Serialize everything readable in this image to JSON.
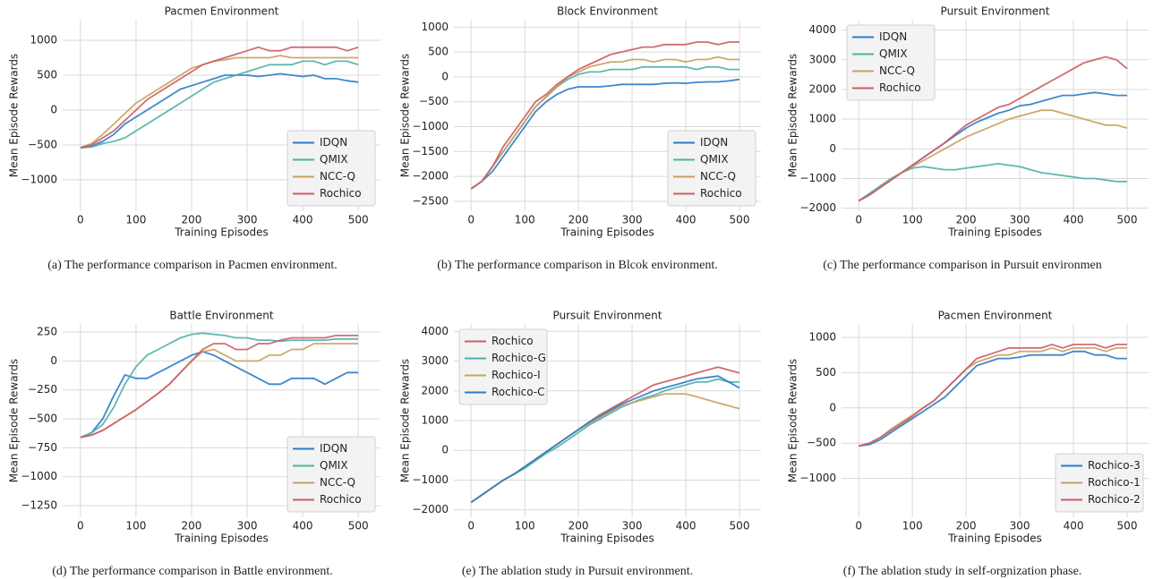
{
  "chart_data": [
    {
      "type": "line",
      "title": "Pacmen Environment",
      "xlabel": "Training Episodes",
      "ylabel": "Mean Episode Rewards",
      "caption": "(a)  The performance comparison in Pacmen environment.",
      "legend": "lower right",
      "grid": true,
      "x": [
        0,
        20,
        40,
        60,
        80,
        100,
        120,
        140,
        160,
        180,
        200,
        220,
        240,
        260,
        280,
        300,
        320,
        340,
        360,
        380,
        400,
        420,
        440,
        460,
        480,
        500
      ],
      "xlim": [
        -32,
        540
      ],
      "ylim": [
        -1450,
        1295
      ],
      "xticks": [
        0,
        100,
        200,
        300,
        400,
        500
      ],
      "yticks": [
        {
          "value": -1000,
          "label": "−1000"
        },
        {
          "value": -500,
          "label": "−500"
        },
        0,
        500,
        1000
      ],
      "series": [
        {
          "name": "IDQN",
          "color": "#2a7bc8",
          "values": [
            -540,
            -520,
            -450,
            -350,
            -200,
            -100,
            0,
            100,
            200,
            300,
            350,
            400,
            450,
            500,
            500,
            500,
            480,
            500,
            520,
            500,
            480,
            500,
            450,
            450,
            420,
            400
          ]
        },
        {
          "name": "QMIX",
          "color": "#4cb1a9",
          "values": [
            -540,
            -530,
            -480,
            -450,
            -400,
            -300,
            -200,
            -100,
            0,
            100,
            200,
            300,
            400,
            450,
            500,
            550,
            600,
            650,
            650,
            650,
            700,
            700,
            650,
            700,
            700,
            650
          ]
        },
        {
          "name": "NCC-Q",
          "color": "#c9a060",
          "values": [
            -540,
            -480,
            -350,
            -200,
            -50,
            100,
            200,
            300,
            400,
            500,
            600,
            650,
            700,
            720,
            750,
            750,
            750,
            750,
            780,
            750,
            750,
            750,
            750,
            750,
            750,
            750
          ]
        },
        {
          "name": "Rochico",
          "color": "#cd5c64",
          "values": [
            -540,
            -500,
            -400,
            -300,
            -150,
            0,
            150,
            250,
            350,
            450,
            550,
            650,
            700,
            750,
            800,
            850,
            900,
            850,
            850,
            900,
            900,
            900,
            900,
            900,
            850,
            900
          ]
        }
      ]
    },
    {
      "type": "line",
      "title": "Block Environment",
      "xlabel": "Training Episodes",
      "ylabel": "Mean Episode Rewards",
      "caption": "(b)  The performance comparison in Blcok environment.",
      "legend": "lower right",
      "grid": true,
      "x": [
        0,
        20,
        40,
        60,
        80,
        100,
        120,
        140,
        160,
        180,
        200,
        220,
        240,
        260,
        280,
        300,
        320,
        340,
        360,
        380,
        400,
        420,
        440,
        460,
        480,
        500
      ],
      "xlim": [
        -32,
        540
      ],
      "ylim": [
        -2700,
        1150
      ],
      "xticks": [
        0,
        100,
        200,
        300,
        400,
        500
      ],
      "yticks": [
        {
          "value": -2500,
          "label": "−2500"
        },
        {
          "value": -2000,
          "label": "−2000"
        },
        {
          "value": -1500,
          "label": "−1500"
        },
        {
          "value": -1000,
          "label": "−1000"
        },
        {
          "value": -500,
          "label": "−500"
        },
        0,
        500,
        1000
      ],
      "series": [
        {
          "name": "IDQN",
          "color": "#2a7bc8",
          "values": [
            -2250,
            -2100,
            -1900,
            -1600,
            -1300,
            -1000,
            -700,
            -500,
            -350,
            -250,
            -200,
            -200,
            -200,
            -180,
            -150,
            -150,
            -150,
            -150,
            -130,
            -120,
            -130,
            -110,
            -100,
            -100,
            -80,
            -50
          ]
        },
        {
          "name": "QMIX",
          "color": "#4cb1a9",
          "values": [
            -2250,
            -2100,
            -1800,
            -1500,
            -1200,
            -900,
            -600,
            -400,
            -200,
            -50,
            50,
            100,
            100,
            150,
            150,
            150,
            200,
            200,
            200,
            200,
            200,
            150,
            200,
            200,
            150,
            150
          ]
        },
        {
          "name": "NCC-Q",
          "color": "#c9a060",
          "values": [
            -2250,
            -2100,
            -1800,
            -1500,
            -1200,
            -900,
            -600,
            -400,
            -200,
            0,
            100,
            200,
            250,
            300,
            300,
            350,
            350,
            300,
            350,
            350,
            300,
            350,
            350,
            400,
            350,
            350
          ]
        },
        {
          "name": "Rochico",
          "color": "#cd5c64",
          "values": [
            -2250,
            -2100,
            -1800,
            -1400,
            -1100,
            -800,
            -500,
            -350,
            -150,
            0,
            150,
            250,
            350,
            450,
            500,
            550,
            600,
            600,
            650,
            650,
            650,
            700,
            700,
            650,
            700,
            700
          ]
        }
      ]
    },
    {
      "type": "line",
      "title": "Pursuit Environment",
      "xlabel": "Training Episodes",
      "ylabel": "Mean Episode Rewards",
      "caption": "(c)  The performance comparison in Pursuit environmen",
      "legend": "upper left",
      "grid": true,
      "x": [
        0,
        20,
        40,
        60,
        80,
        100,
        120,
        140,
        160,
        180,
        200,
        220,
        240,
        260,
        280,
        300,
        320,
        340,
        360,
        380,
        400,
        420,
        440,
        460,
        480,
        500
      ],
      "xlim": [
        -32,
        540
      ],
      "ylim": [
        -2100,
        4350
      ],
      "xticks": [
        0,
        100,
        200,
        300,
        400,
        500
      ],
      "yticks": [
        {
          "value": -2000,
          "label": "−2000"
        },
        {
          "value": -1000,
          "label": "−1000"
        },
        0,
        1000,
        2000,
        3000,
        4000
      ],
      "series": [
        {
          "name": "IDQN",
          "color": "#2a7bc8",
          "values": [
            -1750,
            -1550,
            -1300,
            -1050,
            -800,
            -550,
            -300,
            -50,
            200,
            450,
            700,
            900,
            1050,
            1200,
            1300,
            1450,
            1500,
            1600,
            1700,
            1800,
            1800,
            1850,
            1900,
            1850,
            1800,
            1800
          ]
        },
        {
          "name": "QMIX",
          "color": "#4cb1a9",
          "values": [
            -1750,
            -1500,
            -1250,
            -1000,
            -800,
            -650,
            -600,
            -650,
            -700,
            -700,
            -650,
            -600,
            -550,
            -500,
            -550,
            -600,
            -700,
            -800,
            -850,
            -900,
            -950,
            -1000,
            -1000,
            -1050,
            -1100,
            -1100
          ]
        },
        {
          "name": "NCC-Q",
          "color": "#c9a060",
          "values": [
            -1750,
            -1550,
            -1300,
            -1050,
            -800,
            -600,
            -400,
            -200,
            0,
            200,
            400,
            550,
            700,
            850,
            1000,
            1100,
            1200,
            1300,
            1300,
            1200,
            1100,
            1000,
            900,
            800,
            800,
            700
          ]
        },
        {
          "name": "Rochico",
          "color": "#cd5c64",
          "values": [
            -1750,
            -1550,
            -1300,
            -1050,
            -800,
            -550,
            -300,
            -50,
            200,
            500,
            800,
            1000,
            1200,
            1400,
            1500,
            1700,
            1900,
            2100,
            2300,
            2500,
            2700,
            2900,
            3000,
            3100,
            3000,
            2700
          ]
        }
      ]
    },
    {
      "type": "line",
      "title": "Battle Environment",
      "xlabel": "Training Episodes",
      "ylabel": "Mean Episode Rewards",
      "caption": "(d)  The performance comparison in Battle environment.",
      "legend": "lower right",
      "grid": true,
      "x": [
        0,
        20,
        40,
        60,
        80,
        100,
        120,
        140,
        160,
        180,
        200,
        220,
        240,
        260,
        280,
        300,
        320,
        340,
        360,
        380,
        400,
        420,
        440,
        460,
        480,
        500
      ],
      "xlim": [
        -32,
        540
      ],
      "ylim": [
        -1350,
        320
      ],
      "xticks": [
        0,
        100,
        200,
        300,
        400,
        500
      ],
      "yticks": [
        {
          "value": -1250,
          "label": "−1250"
        },
        {
          "value": -1000,
          "label": "−1000"
        },
        {
          "value": -750,
          "label": "−750"
        },
        {
          "value": -500,
          "label": "−500"
        },
        {
          "value": -250,
          "label": "−250"
        },
        0,
        250
      ],
      "series": [
        {
          "name": "IDQN",
          "color": "#2a7bc8",
          "values": [
            -660,
            -620,
            -500,
            -300,
            -120,
            -150,
            -150,
            -100,
            -50,
            0,
            50,
            80,
            50,
            0,
            -50,
            -100,
            -150,
            -200,
            -200,
            -150,
            -150,
            -150,
            -200,
            -150,
            -100,
            -100
          ]
        },
        {
          "name": "QMIX",
          "color": "#4cb1a9",
          "values": [
            -660,
            -620,
            -550,
            -400,
            -200,
            -50,
            50,
            100,
            150,
            200,
            230,
            240,
            230,
            220,
            200,
            200,
            180,
            180,
            170,
            180,
            180,
            180,
            180,
            190,
            190,
            190
          ]
        },
        {
          "name": "NCC-Q",
          "color": "#c9a060",
          "values": [
            -660,
            -640,
            -600,
            -540,
            -480,
            -420,
            -350,
            -280,
            -200,
            -100,
            0,
            80,
            100,
            50,
            0,
            0,
            0,
            50,
            50,
            100,
            100,
            150,
            150,
            150,
            150,
            150
          ]
        },
        {
          "name": "Rochico",
          "color": "#cd5c64",
          "values": [
            -660,
            -640,
            -600,
            -540,
            -480,
            -420,
            -350,
            -280,
            -200,
            -100,
            0,
            100,
            150,
            150,
            100,
            100,
            150,
            150,
            180,
            200,
            200,
            200,
            200,
            220,
            220,
            220
          ]
        }
      ]
    },
    {
      "type": "line",
      "title": "Pursuit Environment",
      "xlabel": "Training Episodes",
      "ylabel": "Mean Episode Rewards",
      "caption": "(e)  The ablation study in Pursuit environment.",
      "legend": "upper left",
      "grid": true,
      "x": [
        0,
        20,
        40,
        60,
        80,
        100,
        120,
        140,
        160,
        180,
        200,
        220,
        240,
        260,
        280,
        300,
        320,
        340,
        360,
        380,
        400,
        420,
        440,
        460,
        480,
        500
      ],
      "xlim": [
        -32,
        540
      ],
      "ylim": [
        -2250,
        4250
      ],
      "xticks": [
        0,
        100,
        200,
        300,
        400,
        500
      ],
      "yticks": [
        {
          "value": -2000,
          "label": "−2000"
        },
        {
          "value": -1000,
          "label": "−1000"
        },
        0,
        1000,
        2000,
        3000,
        4000
      ],
      "series": [
        {
          "name": "Rochico",
          "color": "#cd5c64",
          "values": [
            -1750,
            -1500,
            -1250,
            -1000,
            -800,
            -550,
            -300,
            -50,
            200,
            450,
            700,
            950,
            1200,
            1400,
            1600,
            1800,
            2000,
            2200,
            2300,
            2400,
            2500,
            2600,
            2700,
            2800,
            2700,
            2600
          ]
        },
        {
          "name": "Rochico-G",
          "color": "#4cb1a9",
          "values": [
            -1750,
            -1500,
            -1250,
            -1000,
            -800,
            -600,
            -350,
            -100,
            100,
            350,
            600,
            850,
            1050,
            1250,
            1450,
            1600,
            1750,
            1850,
            2000,
            2100,
            2200,
            2300,
            2300,
            2400,
            2300,
            2300
          ]
        },
        {
          "name": "Rochico-I",
          "color": "#c9a060",
          "values": [
            -1750,
            -1500,
            -1250,
            -1000,
            -800,
            -550,
            -300,
            -50,
            200,
            450,
            700,
            900,
            1100,
            1300,
            1500,
            1600,
            1700,
            1800,
            1900,
            1900,
            1900,
            1800,
            1700,
            1600,
            1500,
            1400
          ]
        },
        {
          "name": "Rochico-C",
          "color": "#2a7bc8",
          "values": [
            -1750,
            -1500,
            -1250,
            -1000,
            -800,
            -550,
            -300,
            -50,
            200,
            450,
            700,
            950,
            1150,
            1350,
            1550,
            1700,
            1850,
            2000,
            2100,
            2200,
            2300,
            2400,
            2450,
            2500,
            2300,
            2100
          ]
        }
      ]
    },
    {
      "type": "line",
      "title": "Pacmen Environment",
      "xlabel": "Training Episodes",
      "ylabel": "Mean Episode Rewards",
      "caption": "(f)  The ablation study in self-orgnization phase.",
      "legend": "lower right",
      "grid": true,
      "x": [
        0,
        20,
        40,
        60,
        80,
        100,
        120,
        140,
        160,
        180,
        200,
        220,
        240,
        260,
        280,
        300,
        320,
        340,
        360,
        380,
        400,
        420,
        440,
        460,
        480,
        500
      ],
      "xlim": [
        -32,
        540
      ],
      "ylim": [
        -1550,
        1190
      ],
      "xticks": [
        0,
        100,
        200,
        300,
        400,
        500
      ],
      "yticks": [
        {
          "value": -1000,
          "label": "−1000"
        },
        {
          "value": -500,
          "label": "−500"
        },
        0,
        500,
        1000
      ],
      "series": [
        {
          "name": "Rochico-3",
          "color": "#2a7bc8",
          "values": [
            -540,
            -520,
            -450,
            -350,
            -250,
            -150,
            -50,
            50,
            150,
            300,
            450,
            600,
            650,
            700,
            700,
            720,
            750,
            750,
            750,
            750,
            800,
            800,
            750,
            750,
            700,
            700
          ]
        },
        {
          "name": "Rochico-1",
          "color": "#c9a060",
          "values": [
            -540,
            -500,
            -420,
            -300,
            -200,
            -100,
            0,
            100,
            250,
            400,
            550,
            650,
            700,
            750,
            750,
            800,
            800,
            800,
            850,
            800,
            850,
            850,
            850,
            800,
            850,
            850
          ]
        },
        {
          "name": "Rochico-2",
          "color": "#cd5c64",
          "values": [
            -540,
            -500,
            -420,
            -320,
            -220,
            -120,
            0,
            100,
            250,
            400,
            550,
            700,
            750,
            800,
            850,
            850,
            850,
            850,
            900,
            850,
            900,
            900,
            900,
            850,
            900,
            900
          ]
        }
      ]
    }
  ]
}
